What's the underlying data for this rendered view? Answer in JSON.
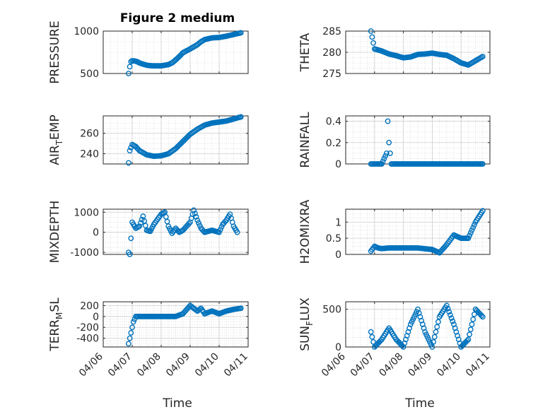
{
  "figure": {
    "title": "Figure 2 medium",
    "xlabel": "Time"
  },
  "style": {
    "marker_color": "#0072BD",
    "grid_color": "#d9d9d9",
    "axis_color": "#262626"
  },
  "chart_data": [
    {
      "type": "scatter",
      "panel": "top-left",
      "ylabel": "PRESSURE",
      "ylabel_sub": "",
      "xlim": [
        "04/06",
        "04/11"
      ],
      "ylim": [
        500,
        1000
      ],
      "yticks": [
        500,
        1000
      ],
      "ytick_labels": [
        "500",
        "1000"
      ],
      "xticks": [
        "04/06",
        "04/07",
        "04/08",
        "04/09",
        "04/10",
        "04/11"
      ],
      "show_xticklabels": false,
      "series": [
        {
          "x": [
            "04/06 21:00",
            "04/06 22:00",
            "04/06 23:00",
            "04/07 00:00",
            "04/07 02:00",
            "04/07 04:00",
            "04/07 06:00",
            "04/07 09:00",
            "04/07 12:00",
            "04/07 15:00",
            "04/07 18:00",
            "04/08 00:00",
            "04/08 06:00",
            "04/08 09:00",
            "04/08 12:00",
            "04/08 15:00",
            "04/08 18:00",
            "04/09 00:00",
            "04/09 06:00",
            "04/09 09:00",
            "04/09 12:00",
            "04/09 18:00",
            "04/10 00:00",
            "04/10 06:00",
            "04/10 12:00",
            "04/10 18:00"
          ],
          "y": [
            500,
            580,
            640,
            650,
            648,
            640,
            625,
            610,
            598,
            592,
            590,
            590,
            605,
            625,
            660,
            700,
            745,
            790,
            840,
            875,
            900,
            920,
            925,
            940,
            960,
            980
          ]
        }
      ]
    },
    {
      "type": "scatter",
      "panel": "top-right",
      "ylabel": "THETA",
      "ylabel_sub": "",
      "xlim": [
        "04/06",
        "04/11"
      ],
      "ylim": [
        275,
        285
      ],
      "yticks": [
        275,
        280,
        285
      ],
      "ytick_labels": [
        "275",
        "280",
        "285"
      ],
      "xticks": [
        "04/06",
        "04/07",
        "04/08",
        "04/09",
        "04/10",
        "04/11"
      ],
      "show_xticklabels": false,
      "series": [
        {
          "x": [
            "04/06 21:00",
            "04/07 00:00",
            "04/07 06:00",
            "04/07 12:00",
            "04/07 18:00",
            "04/08 00:00",
            "04/08 06:00",
            "04/08 12:00",
            "04/08 18:00",
            "04/09 00:00",
            "04/09 06:00",
            "04/09 12:00",
            "04/09 18:00",
            "04/10 00:00",
            "04/10 06:00",
            "04/10 12:00",
            "04/10 18:00"
          ],
          "y": [
            285,
            280.8,
            280.3,
            279.6,
            279.2,
            278.7,
            278.9,
            279.5,
            279.6,
            279.8,
            279.5,
            279.3,
            278.5,
            277.5,
            277,
            278,
            279
          ]
        }
      ]
    },
    {
      "type": "scatter",
      "panel": "row2-left",
      "ylabel": "AIR",
      "ylabel_sub": "T",
      "ylabel_suffix": "EMP",
      "xlim": [
        "04/06",
        "04/11"
      ],
      "ylim": [
        230,
        277
      ],
      "yticks": [
        240,
        260
      ],
      "ytick_labels": [
        "240",
        "260"
      ],
      "xticks": [
        "04/06",
        "04/07",
        "04/08",
        "04/09",
        "04/10",
        "04/11"
      ],
      "show_xticklabels": false,
      "series": [
        {
          "x": [
            "04/06 21:00",
            "04/06 22:00",
            "04/07 00:00",
            "04/07 03:00",
            "04/07 06:00",
            "04/07 12:00",
            "04/07 18:00",
            "04/08 00:00",
            "04/08 06:00",
            "04/08 12:00",
            "04/08 18:00",
            "04/09 00:00",
            "04/09 06:00",
            "04/09 12:00",
            "04/09 18:00",
            "04/10 00:00",
            "04/10 06:00",
            "04/10 12:00",
            "04/10 18:00"
          ],
          "y": [
            231,
            243,
            249,
            247,
            243,
            239,
            237.5,
            238,
            240,
            245,
            252,
            259,
            264,
            268,
            270,
            271,
            272,
            274,
            276
          ]
        }
      ]
    },
    {
      "type": "scatter",
      "panel": "row2-right",
      "ylabel": "RAINFALL",
      "ylabel_sub": "",
      "xlim": [
        "04/06",
        "04/11"
      ],
      "ylim": [
        0,
        0.45
      ],
      "yticks": [
        0,
        0.2,
        0.4
      ],
      "ytick_labels": [
        "0",
        "0.2",
        "0.4"
      ],
      "xticks": [
        "04/06",
        "04/07",
        "04/08",
        "04/09",
        "04/10",
        "04/11"
      ],
      "show_xticklabels": false,
      "series": [
        {
          "x": [
            "04/06 21:00",
            "04/07 00:00",
            "04/07 06:00",
            "04/07 10:00",
            "04/07 11:00",
            "04/07 12:00",
            "04/07 14:00",
            "04/08 00:00",
            "04/08 12:00",
            "04/09 00:00",
            "04/09 12:00",
            "04/10 00:00",
            "04/10 12:00",
            "04/10 18:00"
          ],
          "y": [
            0,
            0,
            0,
            0.1,
            0.4,
            0.2,
            0,
            0,
            0,
            0,
            0,
            0,
            0,
            0
          ]
        }
      ]
    },
    {
      "type": "scatter",
      "panel": "row3-left",
      "ylabel": "MIXDEPTH",
      "ylabel_sub": "",
      "xlim": [
        "04/06",
        "04/11"
      ],
      "ylim": [
        -1100,
        1150
      ],
      "yticks": [
        -1000,
        0,
        1000
      ],
      "ytick_labels": [
        "-1000",
        "0",
        "1000"
      ],
      "xticks": [
        "04/06",
        "04/07",
        "04/08",
        "04/09",
        "04/10",
        "04/11"
      ],
      "show_xticklabels": false,
      "series": [
        {
          "x": [
            "04/06 21:00",
            "04/06 22:00",
            "04/07 00:00",
            "04/07 03:00",
            "04/07 06:00",
            "04/07 09:00",
            "04/07 12:00",
            "04/07 15:00",
            "04/07 18:00",
            "04/08 00:00",
            "04/08 03:00",
            "04/08 06:00",
            "04/08 09:00",
            "04/08 12:00",
            "04/08 15:00",
            "04/08 18:00",
            "04/09 00:00",
            "04/09 03:00",
            "04/09 06:00",
            "04/09 09:00",
            "04/09 12:00",
            "04/09 18:00",
            "04/10 00:00",
            "04/10 03:00",
            "04/10 06:00",
            "04/10 09:00",
            "04/10 12:00",
            "04/10 15:00"
          ],
          "y": [
            -1000,
            -1100,
            500,
            200,
            300,
            800,
            100,
            50,
            400,
            900,
            1000,
            300,
            -50,
            200,
            0,
            100,
            500,
            1100,
            600,
            200,
            0,
            100,
            0,
            400,
            600,
            900,
            300,
            0
          ]
        }
      ]
    },
    {
      "type": "scatter",
      "panel": "row3-right",
      "ylabel": "H2OMIXRA",
      "ylabel_sub": "",
      "xlim": [
        "04/06",
        "04/11"
      ],
      "ylim": [
        0,
        1.4
      ],
      "yticks": [
        0,
        0.5,
        1
      ],
      "ytick_labels": [
        "0",
        "0.5",
        "1"
      ],
      "xticks": [
        "04/06",
        "04/07",
        "04/08",
        "04/09",
        "04/10",
        "04/11"
      ],
      "show_xticklabels": false,
      "series": [
        {
          "x": [
            "04/06 21:00",
            "04/07 00:00",
            "04/07 03:00",
            "04/07 06:00",
            "04/07 12:00",
            "04/08 00:00",
            "04/08 12:00",
            "04/09 00:00",
            "04/09 06:00",
            "04/09 12:00",
            "04/09 18:00",
            "04/10 00:00",
            "04/10 06:00",
            "04/10 12:00",
            "04/10 18:00"
          ],
          "y": [
            0.1,
            0.25,
            0.2,
            0.18,
            0.2,
            0.2,
            0.2,
            0.15,
            0.05,
            0.3,
            0.6,
            0.5,
            0.5,
            1.0,
            1.35
          ]
        }
      ]
    },
    {
      "type": "scatter",
      "panel": "bottom-left",
      "ylabel": "TERR",
      "ylabel_sub": "M",
      "ylabel_suffix": "SL",
      "xlim": [
        "04/06",
        "04/11"
      ],
      "ylim": [
        -560,
        270
      ],
      "yticks": [
        -400,
        -200,
        0,
        200
      ],
      "ytick_labels": [
        "-400",
        "-200",
        "0",
        "200"
      ],
      "xticks": [
        "04/06",
        "04/07",
        "04/08",
        "04/09",
        "04/10",
        "04/11"
      ],
      "show_xticklabels": true,
      "series": [
        {
          "x": [
            "04/06 21:00",
            "04/06 23:00",
            "04/07 01:00",
            "04/07 03:00",
            "04/07 06:00",
            "04/07 12:00",
            "04/08 00:00",
            "04/08 12:00",
            "04/08 18:00",
            "04/09 00:00",
            "04/09 03:00",
            "04/09 06:00",
            "04/09 09:00",
            "04/09 12:00",
            "04/09 18:00",
            "04/10 00:00",
            "04/10 06:00",
            "04/10 12:00",
            "04/10 18:00"
          ],
          "y": [
            -500,
            -300,
            -100,
            0,
            0,
            0,
            0,
            0,
            50,
            200,
            150,
            100,
            150,
            50,
            100,
            50,
            100,
            130,
            150
          ]
        }
      ]
    },
    {
      "type": "scatter",
      "panel": "bottom-right",
      "ylabel": "SUN",
      "ylabel_sub": "F",
      "ylabel_suffix": "LUX",
      "xlim": [
        "04/06",
        "04/11"
      ],
      "ylim": [
        0,
        600
      ],
      "yticks": [
        0,
        500
      ],
      "ytick_labels": [
        "0",
        "500"
      ],
      "xticks": [
        "04/06",
        "04/07",
        "04/08",
        "04/09",
        "04/10",
        "04/11"
      ],
      "show_xticklabels": true,
      "series": [
        {
          "x": [
            "04/06 21:00",
            "04/07 00:00",
            "04/07 06:00",
            "04/07 12:00",
            "04/07 18:00",
            "04/08 00:00",
            "04/08 06:00",
            "04/08 12:00",
            "04/08 18:00",
            "04/09 00:00",
            "04/09 06:00",
            "04/09 12:00",
            "04/09 18:00",
            "04/10 00:00",
            "04/10 06:00",
            "04/10 12:00",
            "04/10 18:00"
          ],
          "y": [
            200,
            0,
            100,
            250,
            100,
            0,
            300,
            500,
            200,
            0,
            400,
            550,
            300,
            0,
            100,
            500,
            400
          ]
        }
      ]
    }
  ]
}
